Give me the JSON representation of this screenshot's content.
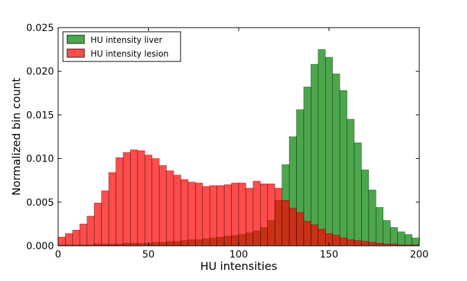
{
  "chart_data": {
    "type": "bar",
    "title": "",
    "xlabel": "HU intensities",
    "ylabel": "Normalized bin count",
    "xlim": [
      0,
      200
    ],
    "ylim": [
      0,
      0.025
    ],
    "xticks": [
      0,
      50,
      100,
      150,
      200
    ],
    "xtick_labels": [
      "0",
      "50",
      "100",
      "150",
      "200"
    ],
    "yticks": [
      0,
      0.005,
      0.01,
      0.015,
      0.02,
      0.025
    ],
    "ytick_labels": [
      "0.000",
      "0.005",
      "0.010",
      "0.015",
      "0.020",
      "0.025"
    ],
    "grid": false,
    "legend_position": "top-left",
    "bin_edges_start": 0,
    "bin_width": 4,
    "series": [
      {
        "name": "HU intensity liver",
        "color": "#008000",
        "opacity": 0.7,
        "values": [
          0.0001,
          0.0001,
          0.0001,
          0.0001,
          0.0001,
          0.0002,
          0.0002,
          0.0002,
          0.0002,
          0.0003,
          0.0003,
          0.0003,
          0.0003,
          0.0004,
          0.0004,
          0.0005,
          0.0005,
          0.0006,
          0.0007,
          0.0007,
          0.0008,
          0.0009,
          0.001,
          0.0011,
          0.0012,
          0.0013,
          0.0015,
          0.0017,
          0.0021,
          0.0029,
          0.0052,
          0.0093,
          0.0125,
          0.0156,
          0.0182,
          0.0208,
          0.0225,
          0.0216,
          0.0197,
          0.0178,
          0.0145,
          0.0118,
          0.0087,
          0.0064,
          0.0044,
          0.0029,
          0.0021,
          0.0016,
          0.0013,
          0.0009
        ]
      },
      {
        "name": "HU intensity lesion",
        "color": "#ff0000",
        "opacity": 0.7,
        "values": [
          0.001,
          0.0014,
          0.0018,
          0.0025,
          0.0034,
          0.0049,
          0.0063,
          0.0084,
          0.0101,
          0.0107,
          0.011,
          0.0109,
          0.0104,
          0.01,
          0.0092,
          0.0086,
          0.0081,
          0.0076,
          0.0073,
          0.0072,
          0.0068,
          0.0069,
          0.0069,
          0.007,
          0.0072,
          0.0072,
          0.0066,
          0.0074,
          0.0071,
          0.0071,
          0.0066,
          0.0052,
          0.0043,
          0.0038,
          0.0028,
          0.0024,
          0.0019,
          0.0014,
          0.0012,
          0.0009,
          0.0007,
          0.0006,
          0.0005,
          0.0004,
          0.0003,
          0.0002,
          0.0002,
          0.0001,
          0.0001,
          0.0001
        ]
      }
    ]
  }
}
